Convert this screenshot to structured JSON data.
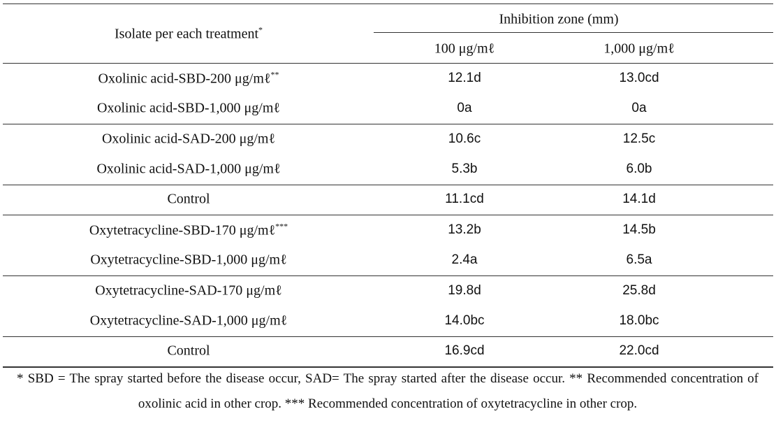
{
  "table": {
    "header": {
      "isolate": "Isolate per each treatment",
      "isolate_note": "*",
      "zone": "Inhibition zone (mm)",
      "columns": [
        "100 μg/mℓ",
        "1,000 μg/mℓ"
      ]
    },
    "groups": [
      {
        "rows": [
          {
            "isolate": "Oxolinic acid-SBD-200 μg/mℓ",
            "note": "**",
            "values": [
              "12.1d",
              "13.0cd"
            ]
          },
          {
            "isolate": "Oxolinic acid-SBD-1,000 μg/mℓ",
            "values": [
              "0a",
              "0a"
            ]
          }
        ]
      },
      {
        "rows": [
          {
            "isolate": "Oxolinic acid-SAD-200 μg/mℓ",
            "values": [
              "10.6c",
              "12.5c"
            ]
          },
          {
            "isolate": "Oxolinic acid-SAD-1,000 μg/mℓ",
            "values": [
              "5.3b",
              "6.0b"
            ]
          }
        ]
      },
      {
        "rows": [
          {
            "isolate": "Control",
            "values": [
              "11.1cd",
              "14.1d"
            ]
          }
        ]
      },
      {
        "rows": [
          {
            "isolate": "Oxytetracycline-SBD-170 μg/mℓ",
            "note": "***",
            "values": [
              "13.2b",
              "14.5b"
            ]
          },
          {
            "isolate": "Oxytetracycline-SBD-1,000 μg/mℓ",
            "values": [
              "2.4a",
              "6.5a"
            ]
          }
        ]
      },
      {
        "rows": [
          {
            "isolate": "Oxytetracycline-SAD-170 μg/mℓ",
            "values": [
              "19.8d",
              "25.8d"
            ]
          },
          {
            "isolate": "Oxytetracycline-SAD-1,000 μg/mℓ",
            "values": [
              "14.0bc",
              "18.0bc"
            ]
          }
        ]
      },
      {
        "rows": [
          {
            "isolate": "Control",
            "values": [
              "16.9cd",
              "22.0cd"
            ]
          }
        ]
      }
    ],
    "footnote": "* SBD = The spray started before the disease occur, SAD= The spray started after the disease occur. ** Recommended concentration of oxolinic acid in other crop. *** Recommended concentration of oxytetracycline in other crop."
  }
}
